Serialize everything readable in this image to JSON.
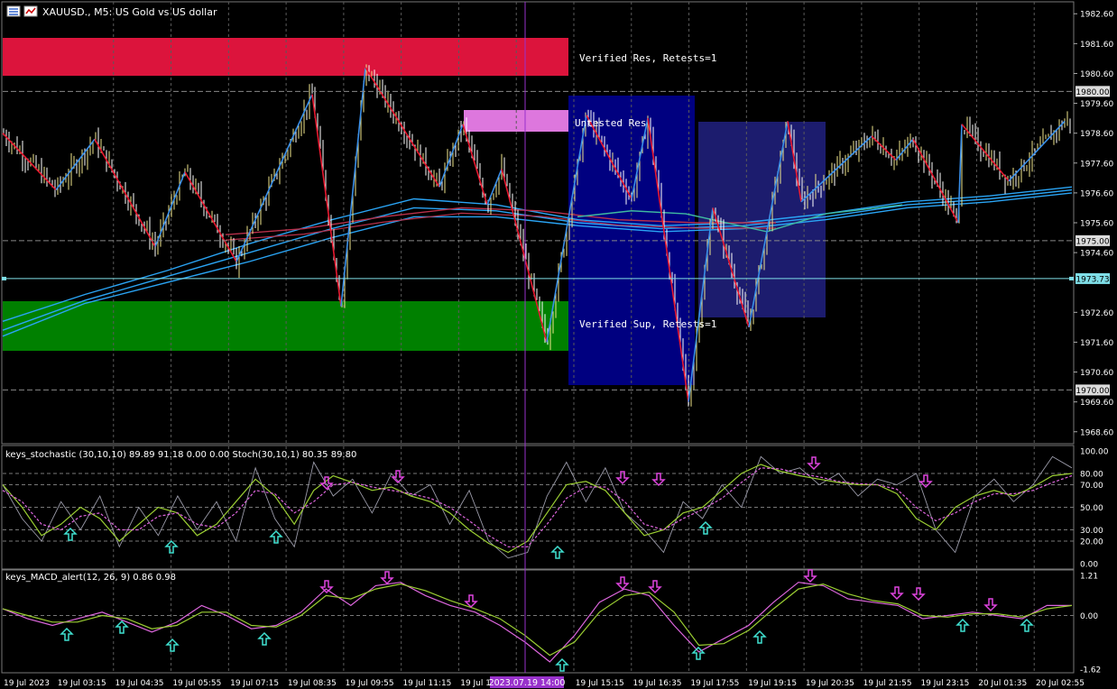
{
  "window": {
    "title": "XAUUSD., M5:  US Gold vs US dollar",
    "icon_menu": "window-menu-icon",
    "icon_chart": "chart-type-icon"
  },
  "colors": {
    "background": "#000000",
    "grid": "#5a5a5a",
    "bull_candle": "#f0e68c",
    "bear_candle": "#ffffff",
    "zigzag_up": "#3a8fe8",
    "zigzag_down": "#e8182f",
    "ma_blue": "#2aa4f4",
    "ma_red": "#b8304a",
    "ma_teal": "#3fb9a0",
    "resistance_verified": "#dc143c",
    "resistance_untested": "#dd77dd",
    "support_verified": "#008000",
    "box_dark_blue": "#000080",
    "box_slate_blue": "#1c1c6e",
    "crosshair": "#9932cc",
    "bid_line": "#7fdfe8",
    "stoch_main": "#9a9aa8",
    "stoch_k": "#9acd32",
    "stoch_d": "#dd66dd",
    "macd_main": "#dd66dd",
    "macd_signal": "#9acd32",
    "arrow_up": "#40e0d0",
    "arrow_down": "#dd44dd"
  },
  "chart_data": [
    {
      "type": "candlestick",
      "symbol": "XAUUSD.",
      "timeframe": "M5",
      "ylim": [
        1968.2,
        1983.0
      ],
      "y_ticks": [
        "1982.60",
        "1981.60",
        "1980.60",
        "1979.60",
        "1978.60",
        "1977.60",
        "1976.60",
        "1975.60",
        "1974.60",
        "1972.60",
        "1971.60",
        "1970.60",
        "1969.60",
        "1968.60"
      ],
      "price_lines": [
        {
          "label": "1980.00",
          "value": 1980.0,
          "style": "level"
        },
        {
          "label": "1975.00",
          "value": 1975.0,
          "style": "level"
        },
        {
          "label": "1970.00",
          "value": 1970.0,
          "style": "level"
        },
        {
          "label": "1973.73",
          "value": 1973.73,
          "style": "bid"
        }
      ],
      "x_time_labels": [
        "19 Jul 2023",
        "19 Jul 03:15",
        "19 Jul 04:35",
        "19 Jul 05:55",
        "19 Jul 07:15",
        "19 Jul 08:35",
        "19 Jul 09:55",
        "19 Jul 11:15",
        "19 Jul 12:35",
        "19 Jul 13:55",
        "19 Jul 15:15",
        "19 Jul 16:35",
        "19 Jul 17:55",
        "19 Jul 19:15",
        "19 Jul 20:35",
        "19 Jul 21:55",
        "19 Jul 23:15",
        "20 Jul 01:35",
        "20 Jul 02:55"
      ],
      "crosshair_time_label": "2023.07.19 14:00",
      "zones": [
        {
          "label": "Verified Res, Retests=1",
          "kind": "resistance_verified",
          "price_top": 1981.8,
          "price_bottom": 1980.5
        },
        {
          "label": "Untested Res",
          "kind": "resistance_untested",
          "price_top": 1979.3,
          "price_bottom": 1978.55
        },
        {
          "label": "Verified Sup, Retests=1",
          "kind": "support_verified",
          "price_top": 1972.4,
          "price_bottom": 1970.75
        }
      ],
      "zigzag": [
        1978.6,
        1976.7,
        1978.4,
        1974.8,
        1977.3,
        1974.3,
        1979.9,
        1972.8,
        1980.8,
        1976.8,
        1978.9,
        1976.2,
        1977.4,
        1971.6,
        1979.2,
        1976.4,
        1979.1,
        1969.6,
        1976.1,
        1972.1,
        1979.0,
        1976.3,
        1978.5,
        1977.7,
        1978.4,
        1975.6,
        1978.9,
        1977.0,
        1979.0
      ],
      "moving_averages": [
        {
          "color": "ma_blue",
          "values": [
            1972.3,
            1973.2,
            1974.0,
            1974.9,
            1975.7,
            1976.4,
            1976.2,
            1975.7,
            1975.5,
            1975.6,
            1975.9,
            1976.3,
            1976.5,
            1976.8
          ]
        },
        {
          "color": "ma_blue",
          "values": [
            1972.0,
            1973.0,
            1973.8,
            1974.6,
            1975.4,
            1976.1,
            1976.0,
            1975.6,
            1975.4,
            1975.5,
            1975.8,
            1976.2,
            1976.4,
            1976.7
          ]
        },
        {
          "color": "ma_blue",
          "values": [
            1971.8,
            1972.9,
            1973.6,
            1974.3,
            1975.1,
            1975.8,
            1975.8,
            1975.5,
            1975.3,
            1975.4,
            1975.7,
            1976.1,
            1976.3,
            1976.6
          ]
        },
        {
          "color": "ma_red",
          "values": [
            1975.2,
            1975.4,
            1975.8,
            1976.1,
            1976.0,
            1975.7,
            1975.6,
            1975.6
          ]
        }
      ]
    },
    {
      "type": "line",
      "title": "keys_stochastic (30,10,10) 89.89 91.18 0.00 0.00 Stoch(30,10,1) 80.35 89.80",
      "ylim": [
        0,
        100
      ],
      "y_ticks": [
        "100.00",
        "80.00",
        "70.00",
        "50.00",
        "30.00",
        "20.00",
        "0.00"
      ],
      "levels": [
        80,
        70,
        50,
        30,
        20
      ],
      "series": [
        {
          "color": "stoch_main",
          "values": [
            70,
            40,
            20,
            55,
            30,
            60,
            15,
            50,
            25,
            60,
            30,
            55,
            20,
            85,
            40,
            15,
            90,
            60,
            75,
            45,
            80,
            60,
            70,
            35,
            65,
            20,
            5,
            10,
            60,
            90,
            55,
            85,
            45,
            30,
            10,
            55,
            40,
            70,
            50,
            95,
            80,
            85,
            70,
            80,
            60,
            75,
            70,
            80,
            30,
            10,
            60,
            75,
            55,
            70,
            95,
            85
          ]
        },
        {
          "color": "stoch_k",
          "values": [
            70,
            50,
            25,
            35,
            50,
            40,
            20,
            35,
            50,
            45,
            25,
            35,
            55,
            75,
            60,
            35,
            65,
            78,
            72,
            65,
            68,
            60,
            55,
            45,
            30,
            18,
            10,
            20,
            45,
            70,
            73,
            65,
            45,
            25,
            30,
            45,
            50,
            65,
            80,
            88,
            82,
            78,
            75,
            72,
            70,
            70,
            62,
            40,
            30,
            50,
            60,
            65,
            60,
            68,
            78,
            80
          ]
        },
        {
          "color": "stoch_d",
          "values": [
            65,
            55,
            35,
            30,
            42,
            45,
            30,
            30,
            42,
            45,
            35,
            32,
            45,
            65,
            62,
            45,
            55,
            70,
            72,
            68,
            65,
            62,
            58,
            50,
            38,
            25,
            15,
            15,
            35,
            58,
            68,
            68,
            55,
            35,
            30,
            40,
            48,
            58,
            72,
            85,
            84,
            80,
            77,
            73,
            71,
            70,
            66,
            50,
            38,
            45,
            55,
            62,
            62,
            65,
            72,
            78
          ]
        }
      ]
    },
    {
      "type": "line",
      "title": "keys_MACD_alert(12, 26, 9) 0.86 0.98",
      "ylim": [
        -1.62,
        1.21
      ],
      "y_ticks": [
        "1.21",
        "0.00",
        "-1.62"
      ],
      "series": [
        {
          "color": "macd_main",
          "values": [
            0.2,
            -0.1,
            -0.3,
            -0.1,
            0.1,
            -0.2,
            -0.5,
            -0.2,
            0.3,
            0.0,
            -0.4,
            -0.3,
            0.1,
            0.8,
            0.3,
            0.9,
            1.0,
            0.6,
            0.3,
            0.1,
            -0.3,
            -0.8,
            -1.4,
            -0.6,
            0.4,
            0.8,
            0.6,
            -0.3,
            -1.1,
            -0.7,
            -0.3,
            0.4,
            1.0,
            0.9,
            0.5,
            0.4,
            0.3,
            -0.1,
            0.0,
            0.1,
            0.0,
            -0.1,
            0.3,
            0.3
          ]
        },
        {
          "color": "macd_signal",
          "values": [
            0.2,
            0.0,
            -0.2,
            -0.2,
            0.0,
            -0.1,
            -0.4,
            -0.3,
            0.1,
            0.1,
            -0.3,
            -0.35,
            0.0,
            0.6,
            0.5,
            0.8,
            0.95,
            0.75,
            0.45,
            0.2,
            -0.1,
            -0.6,
            -1.2,
            -0.8,
            0.1,
            0.6,
            0.7,
            0.1,
            -0.9,
            -0.85,
            -0.45,
            0.2,
            0.8,
            0.95,
            0.65,
            0.45,
            0.35,
            0.0,
            -0.05,
            0.05,
            0.05,
            -0.05,
            0.2,
            0.3
          ]
        }
      ]
    }
  ]
}
